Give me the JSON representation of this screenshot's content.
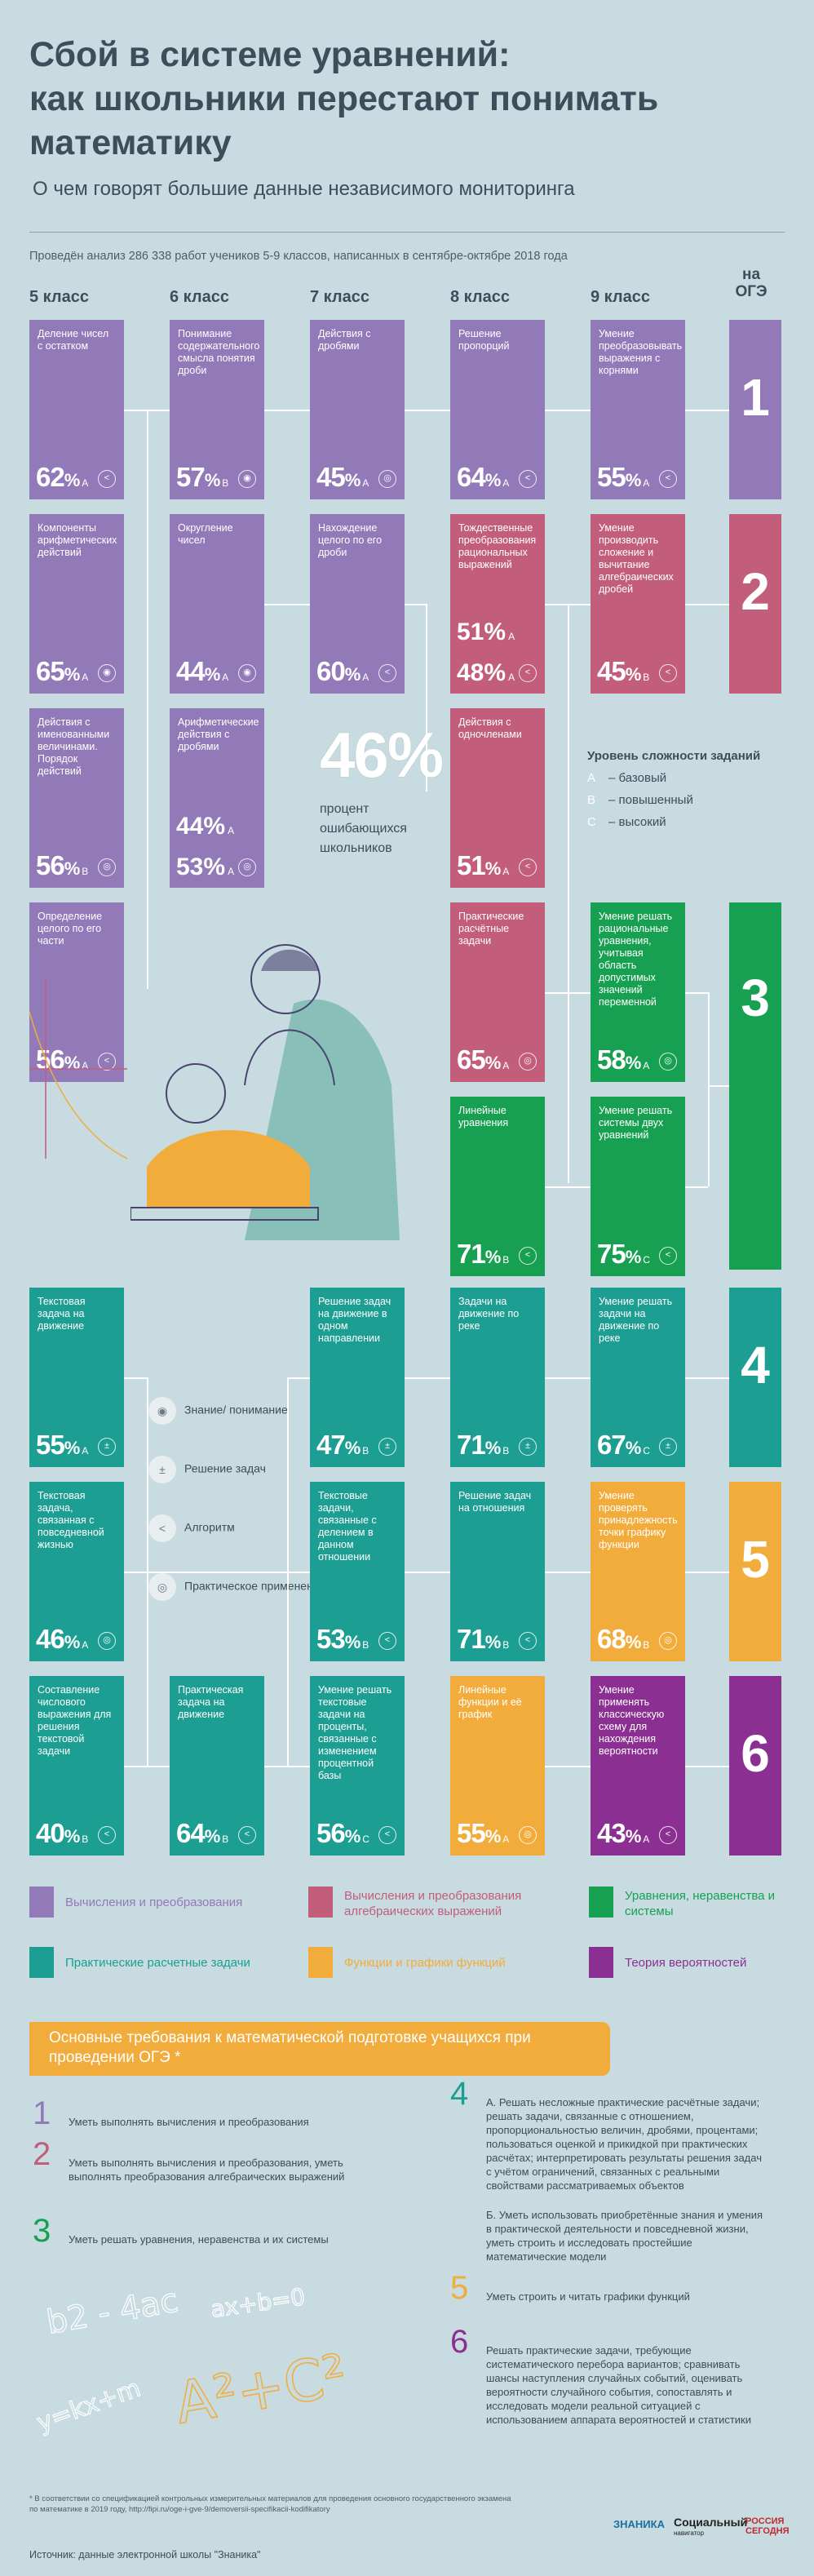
{
  "header": {
    "title_line1": "Сбой в системе уравнений:",
    "title_line2": "как школьники перестают понимать",
    "title_line3": "математику",
    "subtitle": "О чем говорят большие данные независимого мониторинга",
    "note": "Проведён анализ 286 338 работ учеников 5-9 классов, написанных в сентябре-октябре 2018 года"
  },
  "columns": [
    "5 класс",
    "6 класс",
    "7 класс",
    "8 класс",
    "9 класс"
  ],
  "oge_head_1": "на",
  "oge_head_2": "ОГЭ",
  "cards": {
    "g5_1": {
      "label": "Деление чисел с остатком",
      "pct": "62",
      "level": "А"
    },
    "g5_2": {
      "label": "Компоненты арифметических действий",
      "pct": "65",
      "level": "А"
    },
    "g5_3": {
      "label": "Действия с именованными величинами. Порядок действий",
      "pct": "56",
      "level": "В"
    },
    "g5_4": {
      "label": "Определение целого по его части",
      "pct": "56",
      "level": "А"
    },
    "g6_1": {
      "label": "Понимание содержательного смысла понятия дроби",
      "pct": "57",
      "level": "В"
    },
    "g6_2": {
      "label": "Округление чисел",
      "pct": "44",
      "level": "А"
    },
    "g6_3": {
      "label": "Арифметические действия с дробями",
      "pct_a": "44",
      "pct_b": "53",
      "level_a": "А",
      "level_b": "А"
    },
    "g7_1": {
      "label": "Действия с дробями",
      "pct": "45",
      "level": "А"
    },
    "g7_2": {
      "label": "Нахождение целого по его дроби",
      "pct": "60",
      "level": "А"
    },
    "g8_1": {
      "label": "Решение пропорций",
      "pct": "64",
      "level": "А"
    },
    "g8_2": {
      "label": "Тождественные преобразования рациональных выражений",
      "pct_a": "51",
      "pct_b": "48",
      "level_a": "А",
      "level_b": "А"
    },
    "g8_3": {
      "label": "Действия с одночленами",
      "pct": "51",
      "level": "А"
    },
    "g8_4": {
      "label": "Практические расчётные задачи",
      "pct": "65",
      "level": "А"
    },
    "g8_5": {
      "label": "Линейные уравнения",
      "pct": "71",
      "level": "В"
    },
    "g9_1": {
      "label": "Умение преобразовывать выражения с корнями",
      "pct": "55",
      "level": "А"
    },
    "g9_2": {
      "label": "Умение производить сложение и вычитание алгебраических дробей",
      "pct": "45",
      "level": "В"
    },
    "g9_3": {
      "label": "Умение решать рациональные уравнения, учитывая область допустимых значений переменной",
      "pct": "58",
      "level": "А"
    },
    "g9_4": {
      "label": "Умение решать системы двух уравнений",
      "pct": "75",
      "level": "С"
    },
    "r2_5a": {
      "label": "Текстовая задача на движение",
      "pct": "55",
      "level": "А"
    },
    "r2_5b": {
      "label": "Текстовая задача, связанная с повседневной жизнью",
      "pct": "46",
      "level": "А"
    },
    "r2_5c": {
      "label": "Составление числового выражения для решения текстовой задачи",
      "pct": "40",
      "level": "В"
    },
    "r2_6c": {
      "label": "Практическая задача на движение",
      "pct": "64",
      "level": "В"
    },
    "r2_7a": {
      "label": "Решение задач на движение в одном направлении",
      "pct": "47",
      "level": "В"
    },
    "r2_7b": {
      "label": "Текстовые задачи, связанные с делением в данном отношении",
      "pct": "53",
      "level": "В"
    },
    "r2_7c": {
      "label": "Умение решать текстовые задачи на проценты, связанные с изменением процентной базы",
      "pct": "56",
      "level": "С"
    },
    "r2_8a": {
      "label": "Задачи на движение по реке",
      "pct": "71",
      "level": "В"
    },
    "r2_8b": {
      "label": "Решение задач на отношения",
      "pct": "71",
      "level": "В"
    },
    "r2_8c": {
      "label": "Линейные функции и её график",
      "pct": "55",
      "level": "А"
    },
    "r2_9a": {
      "label": "Умение решать задачи на движение по реке",
      "pct": "67",
      "level": "С"
    },
    "r2_9b": {
      "label": "Умение проверять принадлежность точки графику функции",
      "pct": "68",
      "level": "В"
    },
    "r2_9c": {
      "label": "Умение применять классическую схему для нахождения вероятности",
      "pct": "43",
      "level": "А"
    }
  },
  "oge_numbers": [
    "1",
    "2",
    "3",
    "4",
    "5",
    "6"
  ],
  "big_stat": {
    "value": "46%",
    "line1": "процент",
    "line2": "ошибающихся",
    "line3": "школьников"
  },
  "difficulty": {
    "heading": "Уровень сложности заданий",
    "a_letter": "А",
    "a_text": "– базовый",
    "b_letter": "В",
    "b_text": "– повышенный",
    "c_letter": "С",
    "c_text": "– высокий"
  },
  "icon_legend": {
    "knowledge": "Знание/ понимание",
    "solving": "Решение задач",
    "algorithm": "Алгоритм",
    "practical": "Практическое применение"
  },
  "categories": {
    "calc": "Вычисления и преобразования",
    "alg": "Вычисления и преобразования алгебраических выражений",
    "eq": "Уравнения, неравенства и системы",
    "prac": "Практические расчетные задачи",
    "func": "Функции и графики функций",
    "prob": "Теория вероятностей"
  },
  "colors": {
    "calc": "#9279b8",
    "alg": "#c25d7c",
    "eq": "#18a052",
    "prac": "#1c9e92",
    "func": "#f2ac3c",
    "prob": "#8c2f92"
  },
  "requirements": {
    "heading": "Основные требования к математической подготовке учащихся при проведении ОГЭ *",
    "r1": "Уметь выполнять вычисления и преобразования",
    "r2": "Уметь выполнять вычисления и преобразования, уметь выполнять преобразования алгебраических выражений",
    "r3": "Уметь решать уравнения, неравенства и их системы",
    "r4a": "А. Решать несложные практические расчётные задачи; решать задачи, связанные с отношением, пропорциональностью величин, дробями, процентами; пользоваться оценкой и прикидкой при практических расчётах; интерпретировать результаты решения задач с учётом ограничений, связанных с реальными свойствами рассматриваемых объектов",
    "r4b": "Б. Уметь использовать приобретённые знания и умения в практической деятельности и повседневной жизни, уметь строить и исследовать простейшие математические модели",
    "r5": "Уметь строить и читать графики функций",
    "r6": "Решать практические задачи, требующие систематического перебора вариантов; сравнивать шансы наступления случайных событий, оценивать вероятности случайного события, сопоставлять и исследовать модели реальной ситуацией с использованием аппарата вероятностей и статистики"
  },
  "footnote": "* В соответствии со спецификацией контрольных измерительных материалов для проведения основного государственного экзамена по математике в 2019 году, http://fipi.ru/oge-i-gve-9/demoversii-specifikacii-kodifikatory",
  "source": "Источник: данные электронной школы \"Знаника\"",
  "logos": {
    "znanika": "ЗНАНИКА",
    "social": "Социальный",
    "social_sub": "навигатор",
    "ria": "РОССИЯ СЕГОДНЯ"
  }
}
